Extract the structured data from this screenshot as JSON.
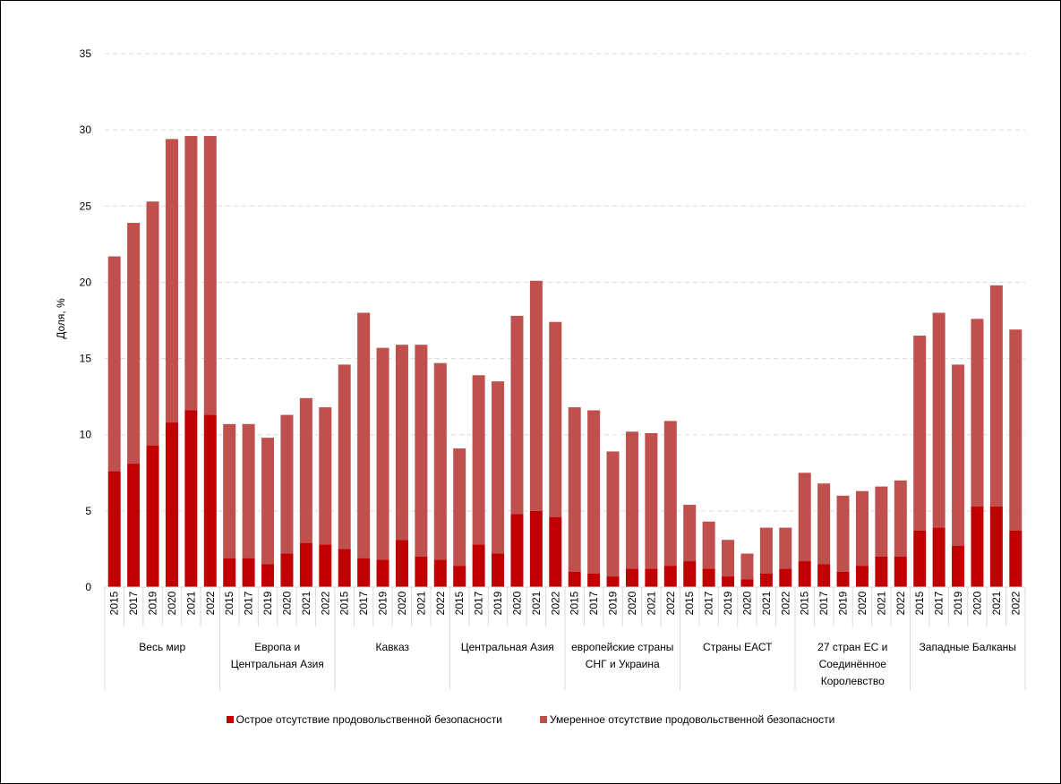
{
  "chart_data": {
    "type": "bar",
    "stacked": true,
    "title": "",
    "xlabel": "",
    "ylabel": "Доля, %",
    "ylim": [
      0,
      35
    ],
    "yticks": [
      0,
      5,
      10,
      15,
      20,
      25,
      30,
      35
    ],
    "grid": "horizontal dashed",
    "legend_position": "bottom",
    "colors": {
      "severe": "#c00000",
      "moderate": "#c0504d"
    },
    "groups": [
      {
        "label": "Весь мир",
        "years": [
          "2015",
          "2017",
          "2019",
          "2020",
          "2021",
          "2022"
        ],
        "severe": [
          7.6,
          8.1,
          9.3,
          10.8,
          11.6,
          11.3
        ],
        "total": [
          21.7,
          23.9,
          25.3,
          29.4,
          29.6,
          29.6
        ]
      },
      {
        "label": "Европа и Центральная Азия",
        "years": [
          "2015",
          "2017",
          "2019",
          "2020",
          "2021",
          "2022"
        ],
        "severe": [
          1.9,
          1.9,
          1.5,
          2.2,
          2.9,
          2.8
        ],
        "total": [
          10.7,
          10.7,
          9.8,
          11.3,
          12.4,
          11.8
        ]
      },
      {
        "label": "Кавказ",
        "years": [
          "2015",
          "2017",
          "2019",
          "2020",
          "2021",
          "2022"
        ],
        "severe": [
          2.5,
          1.9,
          1.8,
          3.1,
          2.0,
          1.8
        ],
        "total": [
          14.6,
          18.0,
          15.7,
          15.9,
          15.9,
          14.7
        ]
      },
      {
        "label": "Центральная Азия",
        "years": [
          "2015",
          "2017",
          "2019",
          "2020",
          "2021",
          "2022"
        ],
        "severe": [
          1.4,
          2.8,
          2.2,
          4.8,
          5.0,
          4.6
        ],
        "total": [
          9.1,
          13.9,
          13.5,
          17.8,
          20.1,
          17.4
        ]
      },
      {
        "label": "европейские страны СНГ и Украина",
        "years": [
          "2015",
          "2017",
          "2019",
          "2020",
          "2021",
          "2022"
        ],
        "severe": [
          1.0,
          0.9,
          0.7,
          1.2,
          1.2,
          1.4
        ],
        "total": [
          11.8,
          11.6,
          8.9,
          10.2,
          10.1,
          10.9
        ]
      },
      {
        "label": "Страны ЕАСТ",
        "years": [
          "2015",
          "2017",
          "2019",
          "2020",
          "2021",
          "2022"
        ],
        "severe": [
          1.7,
          1.2,
          0.7,
          0.5,
          0.9,
          1.2
        ],
        "total": [
          5.4,
          4.3,
          3.1,
          2.2,
          3.9,
          3.9
        ]
      },
      {
        "label": "27 стран ЕС и Соединённое Королевство",
        "years": [
          "2015",
          "2017",
          "2019",
          "2020",
          "2021",
          "2022"
        ],
        "severe": [
          1.7,
          1.5,
          1.0,
          1.4,
          2.0,
          2.0
        ],
        "total": [
          7.5,
          6.8,
          6.0,
          6.3,
          6.6,
          7.0
        ]
      },
      {
        "label": "Западные Балканы",
        "years": [
          "2015",
          "2017",
          "2019",
          "2020",
          "2021",
          "2022"
        ],
        "severe": [
          3.7,
          3.9,
          2.7,
          5.3,
          5.3,
          3.7
        ],
        "total": [
          16.5,
          18.0,
          14.6,
          17.6,
          19.8,
          16.9
        ]
      }
    ],
    "series": [
      {
        "key": "severe",
        "name": "Острое отсутствие продовольственной безопасности"
      },
      {
        "key": "moderate",
        "name": "Умеренное отсутствие продовольственной безопасности"
      }
    ]
  }
}
